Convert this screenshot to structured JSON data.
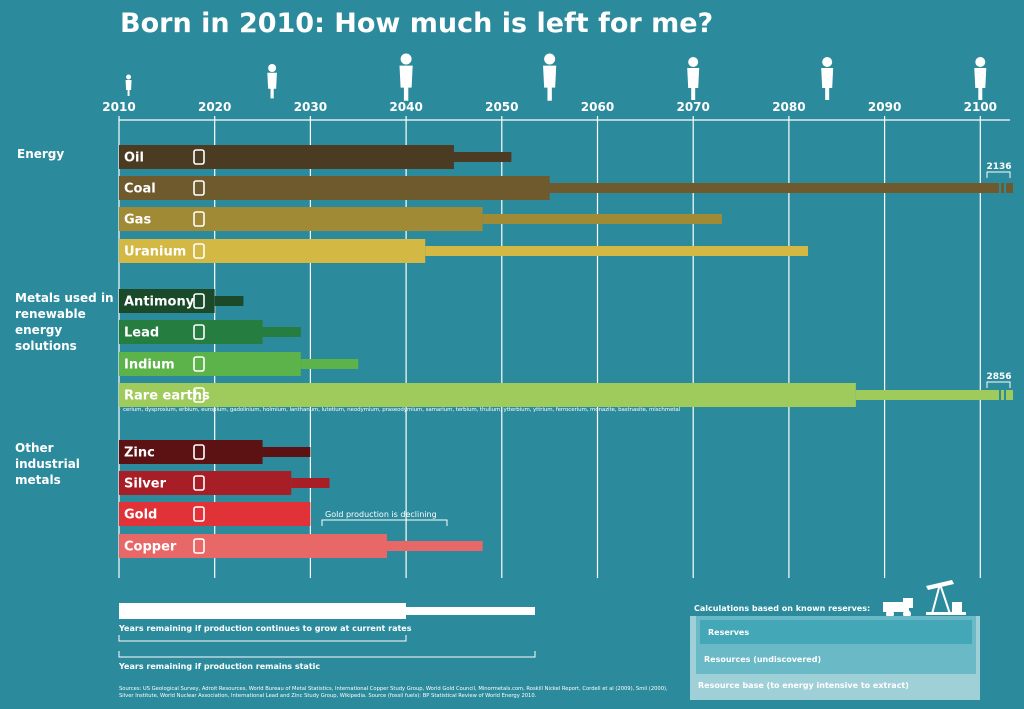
{
  "title": "Born in 2010: How much is left for me?",
  "groups": [
    {
      "label": "Energy"
    },
    {
      "label": "Metals used in renewable energy solutions"
    },
    {
      "label": "Other industrial metals"
    }
  ],
  "rare_earths_list": "cerium, dysprosium, erbium, europium, gadolinium, holmium, lanthanum, lutetium, neodymium, praseodymium, samarium, terbium, thulium, ytterbium, yttrium, ferrocerium, monazite, bastnasite, mischmetal",
  "annotations": {
    "coal_end": "2136",
    "rare_earths_end": "2856",
    "gold_note": "Gold production is declining"
  },
  "legend": {
    "growing": "Years remaining if production continues to grow at current rates",
    "static": "Years remaining if production remains static",
    "calc_title": "Calculations based on known reserves:",
    "reserves": "Reserves",
    "resources": "Resources (undiscovered)",
    "resource_base": "Resource base (to energy intensive to extract)"
  },
  "sources": "Sources: US Geological Survey, Adroit Resources, World Bureau of Metal Statistics, International Copper Study Group, World Gold Council, Minormetals.com, Roskill Nickel Report, Cordell et al (2009), Smil (2000), Silver Institute, World Nuclear Association, International Lead and Zinc Study Group, Wikipedia. Source (fossil fuels): BP Statistical Review of World Energy 2010.",
  "chart_data": {
    "type": "bar",
    "title": "Born in 2010: How much is left for me?",
    "x_axis": {
      "min": 2010,
      "max": 2100,
      "ticks": [
        2010,
        2020,
        2030,
        2040,
        2050,
        2060,
        2070,
        2080,
        2090,
        2100
      ]
    },
    "series_names": [
      "Years remaining if production continues to grow at current rates",
      "Years remaining if production remains static"
    ],
    "resources": [
      {
        "name": "Oil",
        "group": "Energy",
        "growth_end": 2045,
        "static_end": 2051,
        "color": "#4a3b22",
        "icon": "fuel-pump-icon"
      },
      {
        "name": "Coal",
        "group": "Energy",
        "growth_end": 2055,
        "static_end": 2136,
        "color": "#6e5a2c",
        "icon": "lightning-icon"
      },
      {
        "name": "Gas",
        "group": "Energy",
        "growth_end": 2048,
        "static_end": 2073,
        "color": "#a08a35",
        "icon": "lightning-icon"
      },
      {
        "name": "Uranium",
        "group": "Energy",
        "growth_end": 2042,
        "static_end": 2082,
        "color": "#d4b844",
        "icon": "radiation-icon"
      },
      {
        "name": "Antimony",
        "group": "Metals used in renewable energy solutions",
        "growth_end": 2020,
        "static_end": 2023,
        "color": "#1b4a2b",
        "icon": "battery-icon"
      },
      {
        "name": "Lead",
        "group": "Metals used in renewable energy solutions",
        "growth_end": 2025,
        "static_end": 2029,
        "color": "#267d40",
        "icon": "car-icon"
      },
      {
        "name": "Indium",
        "group": "Metals used in renewable energy solutions",
        "growth_end": 2029,
        "static_end": 2035,
        "color": "#5bb349",
        "icon": "solar-panel-icon"
      },
      {
        "name": "Rare earths",
        "group": "Metals used in renewable energy solutions",
        "growth_end": 2087,
        "static_end": 2856,
        "color": "#9fca5c",
        "icon": "wind-turbine-icon"
      },
      {
        "name": "Zinc",
        "group": "Other industrial metals",
        "growth_end": 2025,
        "static_end": 2030,
        "color": "#5c1212",
        "icon": "saxophone-icon"
      },
      {
        "name": "Silver",
        "group": "Other industrial metals",
        "growth_end": 2028,
        "static_end": 2032,
        "color": "#a81e27",
        "icon": "ring-icon"
      },
      {
        "name": "Gold",
        "group": "Other industrial metals",
        "growth_end": 2030,
        "static_end": 2030,
        "color": "#e13238",
        "icon": "phone-icon"
      },
      {
        "name": "Copper",
        "group": "Other industrial metals",
        "growth_end": 2038,
        "static_end": 2048,
        "color": "#e86868",
        "icon": "pipe-valve-icon"
      }
    ]
  }
}
